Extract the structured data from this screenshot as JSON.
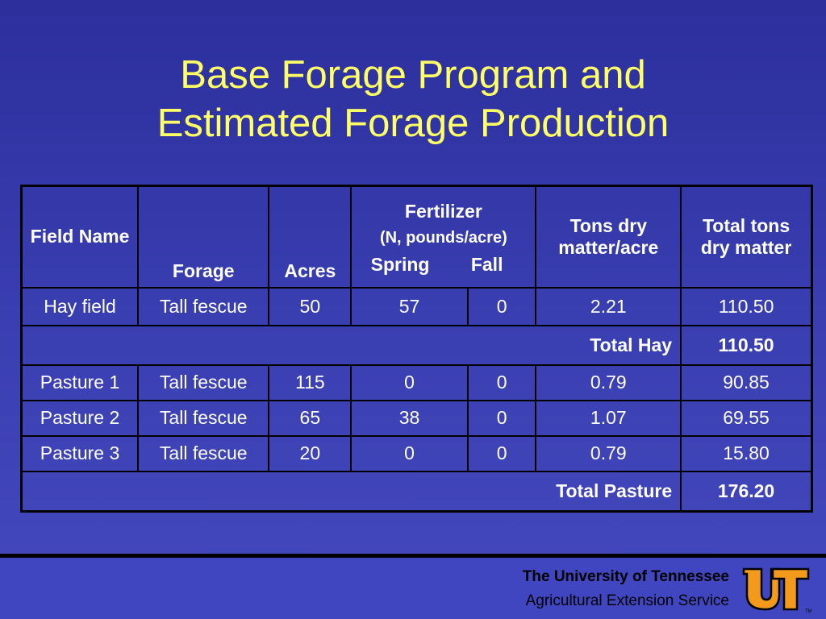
{
  "title": {
    "line1": "Base Forage Program and",
    "line2": "Estimated Forage Production"
  },
  "table": {
    "headers": {
      "field_name": "Field Name",
      "forage": "Forage",
      "acres": "Acres",
      "fertilizer": "Fertilizer",
      "fertilizer_units": "(N, pounds/acre)",
      "spring": "Spring",
      "fall": "Fall",
      "tons_per_acre": "Tons dry matter/acre",
      "total_tons": "Total tons dry matter"
    },
    "hay_rows": [
      {
        "field": "Hay field",
        "forage": "Tall fescue",
        "acres": "50",
        "spring": "57",
        "fall": "0",
        "tons_acre": "2.21",
        "total": "110.50"
      }
    ],
    "total_hay": {
      "label": "Total Hay",
      "value": "110.50"
    },
    "pasture_rows": [
      {
        "field": "Pasture 1",
        "forage": "Tall fescue",
        "acres": "115",
        "spring": "0",
        "fall": "0",
        "tons_acre": "0.79",
        "total": "90.85"
      },
      {
        "field": "Pasture 2",
        "forage": "Tall fescue",
        "acres": "65",
        "spring": "38",
        "fall": "0",
        "tons_acre": "1.07",
        "total": "69.55"
      },
      {
        "field": "Pasture 3",
        "forage": "Tall fescue",
        "acres": "20",
        "spring": "0",
        "fall": "0",
        "tons_acre": "0.79",
        "total": "15.80"
      }
    ],
    "total_pasture": {
      "label": "Total Pasture",
      "value": "176.20"
    }
  },
  "footer": {
    "university": "The University of Tennessee",
    "service": "Agricultural Extension Service",
    "logo_text": "UT",
    "trademark": "TM"
  },
  "colors": {
    "background": "#3a3fb2",
    "title": "#ffff66",
    "table_text": "#ffffff",
    "logo_orange": "#f39a1c"
  }
}
